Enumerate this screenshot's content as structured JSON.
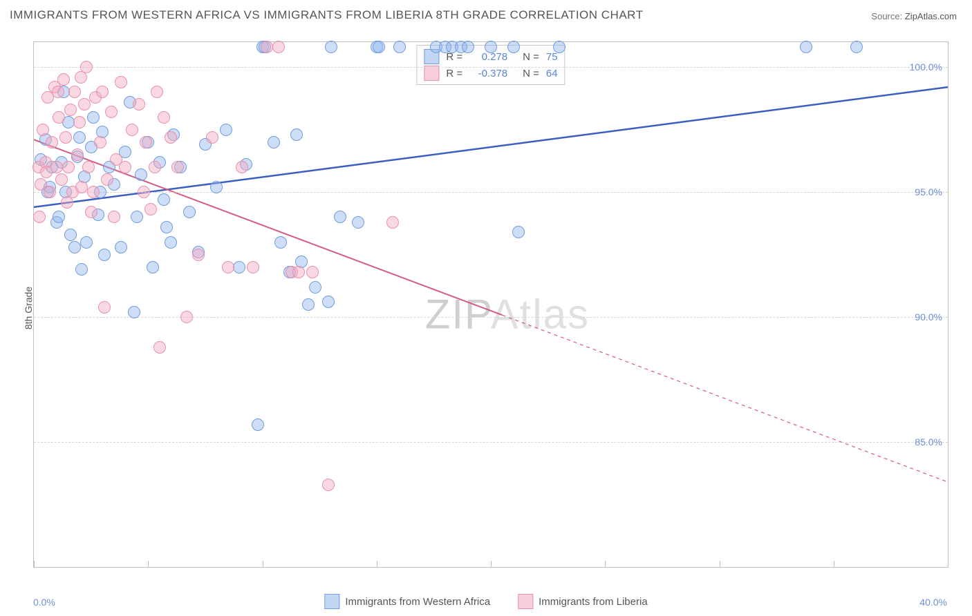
{
  "title": "IMMIGRANTS FROM WESTERN AFRICA VS IMMIGRANTS FROM LIBERIA 8TH GRADE CORRELATION CHART",
  "source_label": "Source:",
  "source_name": "ZipAtlas.com",
  "y_axis_label": "8th Grade",
  "watermark": "ZIPAtlas",
  "chart": {
    "type": "scatter",
    "x_domain": [
      0,
      40
    ],
    "y_domain": [
      80,
      101
    ],
    "x_ticks": [
      0,
      5,
      10,
      15,
      20,
      25,
      30,
      35,
      40
    ],
    "x_tick_labels": {
      "0": "0.0%",
      "40": "40.0%"
    },
    "y_ticks": [
      85.0,
      90.0,
      95.0,
      100.0
    ],
    "y_tick_labels": [
      "85.0%",
      "90.0%",
      "95.0%",
      "100.0%"
    ],
    "background": "#ffffff",
    "grid_color": "#d5d5d5",
    "border_color": "#bfbfbf",
    "marker_radius": 8,
    "series": [
      {
        "name": "Immigrants from Western Africa",
        "key": "wa",
        "color_fill": "rgba(146,182,237,.45)",
        "color_stroke": "#6f9de0",
        "line_color": "#3b5fc0",
        "line_width": 2.5,
        "regression": {
          "x1": 0,
          "y1": 94.4,
          "x2": 40,
          "y2": 99.2,
          "solid_until_x": 40
        },
        "R": 0.278,
        "N": 75,
        "points": [
          [
            0.3,
            96.3
          ],
          [
            0.5,
            97.1
          ],
          [
            0.7,
            95.2
          ],
          [
            0.8,
            96.0
          ],
          [
            1.0,
            93.8
          ],
          [
            1.2,
            96.2
          ],
          [
            1.3,
            99.0
          ],
          [
            1.4,
            95.0
          ],
          [
            1.6,
            93.3
          ],
          [
            1.8,
            92.8
          ],
          [
            1.9,
            96.4
          ],
          [
            2.0,
            97.2
          ],
          [
            2.2,
            95.6
          ],
          [
            2.3,
            93.0
          ],
          [
            2.5,
            96.8
          ],
          [
            2.6,
            98.0
          ],
          [
            2.8,
            94.1
          ],
          [
            3.0,
            97.4
          ],
          [
            3.1,
            92.5
          ],
          [
            3.3,
            96.0
          ],
          [
            3.5,
            95.3
          ],
          [
            3.8,
            92.8
          ],
          [
            4.0,
            96.6
          ],
          [
            4.2,
            98.6
          ],
          [
            4.5,
            94.0
          ],
          [
            4.7,
            95.7
          ],
          [
            5.0,
            97.0
          ],
          [
            5.2,
            92.0
          ],
          [
            5.5,
            96.2
          ],
          [
            5.8,
            93.6
          ],
          [
            6.1,
            97.3
          ],
          [
            6.4,
            96.0
          ],
          [
            6.8,
            94.2
          ],
          [
            7.2,
            92.6
          ],
          [
            7.5,
            96.9
          ],
          [
            8.0,
            95.2
          ],
          [
            8.4,
            97.5
          ],
          [
            9.0,
            92.0
          ],
          [
            9.3,
            96.1
          ],
          [
            9.8,
            85.7
          ],
          [
            10.0,
            100.8
          ],
          [
            10.1,
            100.8
          ],
          [
            10.5,
            97.0
          ],
          [
            10.8,
            93.0
          ],
          [
            11.2,
            91.8
          ],
          [
            11.5,
            97.3
          ],
          [
            11.7,
            92.2
          ],
          [
            12.0,
            90.5
          ],
          [
            12.3,
            91.2
          ],
          [
            12.9,
            90.6
          ],
          [
            13.0,
            100.8
          ],
          [
            13.4,
            94.0
          ],
          [
            14.2,
            93.8
          ],
          [
            15.0,
            100.8
          ],
          [
            15.1,
            100.8
          ],
          [
            16.0,
            100.8
          ],
          [
            17.6,
            100.8
          ],
          [
            18.0,
            100.8
          ],
          [
            18.3,
            100.8
          ],
          [
            18.7,
            100.8
          ],
          [
            19.0,
            100.8
          ],
          [
            20.0,
            100.8
          ],
          [
            21.0,
            100.8
          ],
          [
            21.2,
            93.4
          ],
          [
            23.0,
            100.8
          ],
          [
            33.8,
            100.8
          ],
          [
            36.0,
            100.8
          ],
          [
            0.6,
            95.0
          ],
          [
            1.1,
            94.0
          ],
          [
            1.5,
            97.8
          ],
          [
            2.1,
            91.9
          ],
          [
            2.9,
            95.0
          ],
          [
            4.4,
            90.2
          ],
          [
            6.0,
            93.0
          ],
          [
            5.7,
            94.7
          ]
        ]
      },
      {
        "name": "Immigrants from Liberia",
        "key": "lb",
        "color_fill": "rgba(244,168,190,.45)",
        "color_stroke": "#e890ad",
        "line_color": "#d35b82",
        "line_width": 2.0,
        "regression": {
          "x1": 0,
          "y1": 97.1,
          "x2": 40,
          "y2": 83.4,
          "solid_until_x": 20.5
        },
        "R": -0.378,
        "N": 64,
        "points": [
          [
            0.2,
            96.0
          ],
          [
            0.3,
            95.3
          ],
          [
            0.4,
            97.5
          ],
          [
            0.5,
            96.2
          ],
          [
            0.6,
            98.8
          ],
          [
            0.7,
            95.0
          ],
          [
            0.8,
            97.0
          ],
          [
            0.9,
            99.2
          ],
          [
            1.0,
            96.0
          ],
          [
            1.1,
            98.0
          ],
          [
            1.2,
            95.5
          ],
          [
            1.3,
            99.5
          ],
          [
            1.4,
            97.2
          ],
          [
            1.5,
            96.0
          ],
          [
            1.6,
            98.3
          ],
          [
            1.7,
            95.0
          ],
          [
            1.8,
            99.0
          ],
          [
            1.9,
            96.5
          ],
          [
            2.0,
            97.8
          ],
          [
            2.1,
            95.2
          ],
          [
            2.2,
            98.5
          ],
          [
            2.3,
            100.0
          ],
          [
            2.4,
            96.0
          ],
          [
            2.5,
            94.2
          ],
          [
            2.7,
            98.8
          ],
          [
            2.9,
            97.0
          ],
          [
            3.0,
            99.0
          ],
          [
            3.2,
            95.5
          ],
          [
            3.4,
            98.2
          ],
          [
            3.6,
            96.3
          ],
          [
            3.8,
            99.4
          ],
          [
            4.0,
            96.0
          ],
          [
            4.3,
            97.5
          ],
          [
            4.6,
            98.5
          ],
          [
            4.9,
            97.0
          ],
          [
            5.1,
            94.3
          ],
          [
            5.4,
            99.0
          ],
          [
            5.7,
            98.0
          ],
          [
            6.0,
            97.2
          ],
          [
            3.1,
            90.4
          ],
          [
            5.5,
            88.8
          ],
          [
            6.3,
            96.0
          ],
          [
            6.7,
            90.0
          ],
          [
            7.2,
            92.5
          ],
          [
            7.8,
            97.2
          ],
          [
            8.5,
            92.0
          ],
          [
            9.1,
            96.0
          ],
          [
            9.6,
            92.0
          ],
          [
            10.2,
            100.8
          ],
          [
            10.7,
            100.8
          ],
          [
            11.3,
            91.8
          ],
          [
            11.6,
            91.8
          ],
          [
            12.2,
            91.8
          ],
          [
            12.9,
            83.3
          ],
          [
            15.7,
            93.8
          ],
          [
            0.25,
            94.0
          ],
          [
            0.55,
            95.8
          ],
          [
            1.05,
            99.0
          ],
          [
            1.45,
            94.6
          ],
          [
            2.05,
            99.6
          ],
          [
            2.6,
            95.0
          ],
          [
            3.5,
            94.0
          ],
          [
            4.8,
            95.0
          ],
          [
            5.3,
            96.0
          ]
        ]
      }
    ]
  },
  "legend_bottom": [
    {
      "swatch": "blue",
      "label": "Immigrants from Western Africa"
    },
    {
      "swatch": "pink",
      "label": "Immigrants from Liberia"
    }
  ],
  "legend_top": [
    {
      "swatch": "blue",
      "r_label": "R =",
      "r_value": "0.278",
      "n_label": "N =",
      "n_value": "75"
    },
    {
      "swatch": "pink",
      "r_label": "R =",
      "r_value": "-0.378",
      "n_label": "N =",
      "n_value": "64"
    }
  ]
}
